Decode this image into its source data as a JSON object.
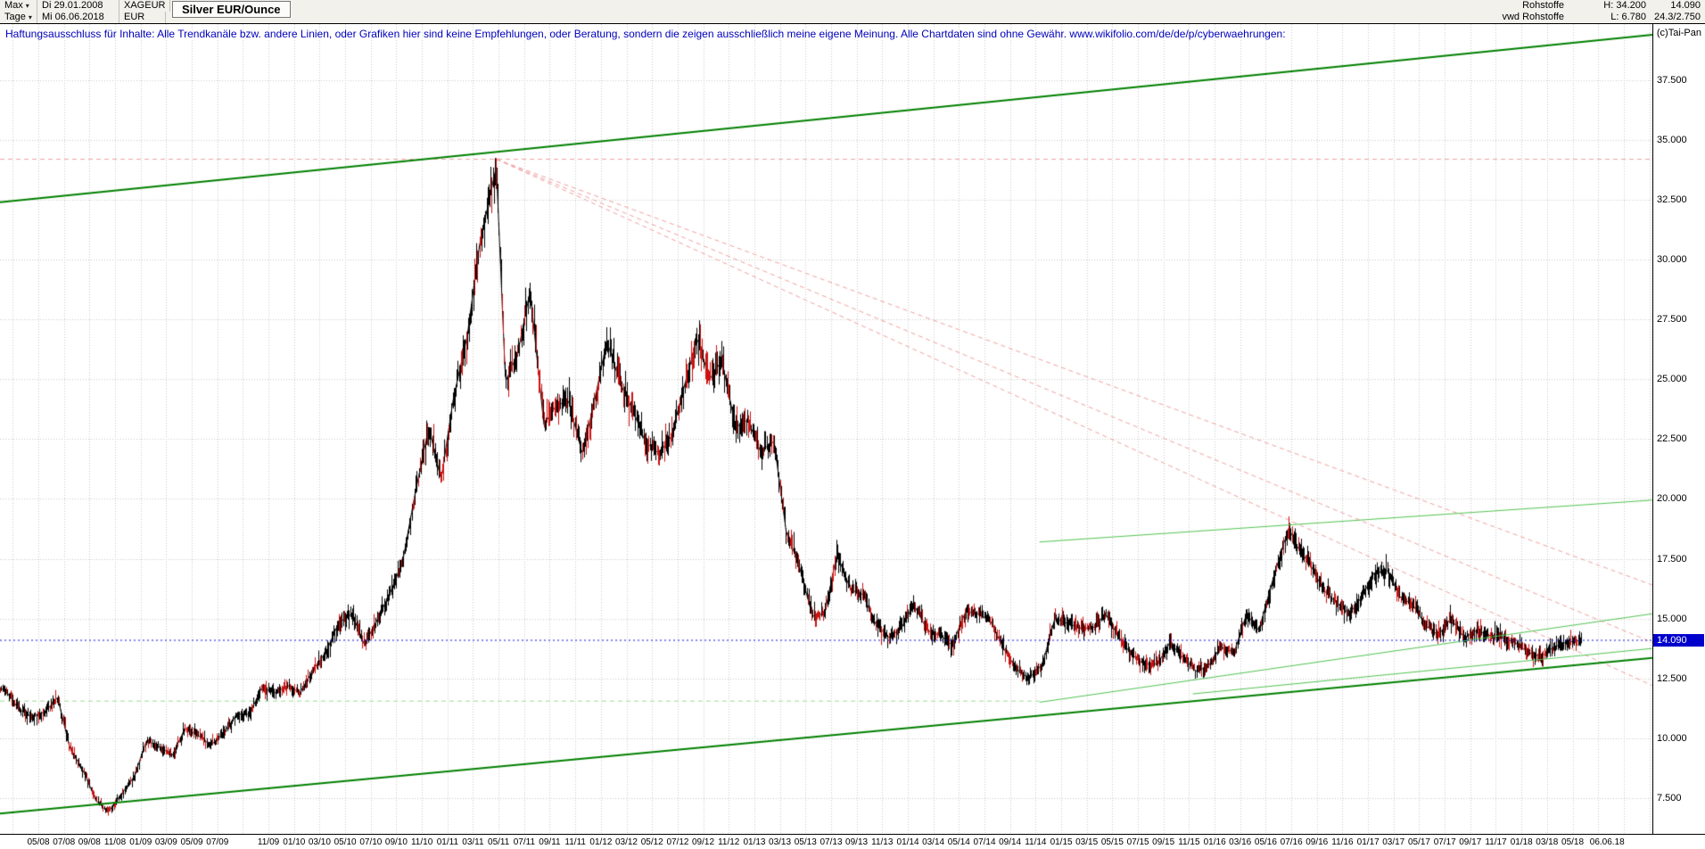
{
  "header": {
    "range_selector": "Max",
    "start_date": "Di 29.01.2008",
    "symbol": "XAGEUR",
    "title": "Silver EUR/Ounce",
    "period_selector": "Tage",
    "end_date": "Mi 06.06.2018",
    "currency": "EUR",
    "right": {
      "feed1": "Rohstoffe",
      "high": "H: 34.200",
      "last": "14.090",
      "feed2": "vwd Rohstoffe",
      "low": "L: 6.780",
      "extra": "24.3/2.750"
    }
  },
  "disclaimer": {
    "text": "Haftungsausschluss für Inhalte: Alle Trendkanäle bzw. andere Linien, oder Grafiken hier sind keine Empfehlungen, oder Beratung, sondern die zeigen ausschließlich meine eigene Meinung. Alle Chartdaten sind ohne Gewähr.  www.wikifolio.com/de/de/p/cyberwaehrungen:",
    "copyright": "(c)Tai-Pan"
  },
  "chart_data": {
    "type": "candlestick",
    "title": "Silver EUR/Ounce",
    "symbol": "XAGEUR",
    "currency": "EUR",
    "period": "Tage",
    "high": 34.2,
    "low": 6.78,
    "last": 14.09,
    "price_label": "14.090",
    "x_range": [
      2008.125,
      2018.895
    ],
    "y_range": [
      6.0,
      39.85
    ],
    "grid": {
      "v_start": 2008.208,
      "v_step": 0.16667
    },
    "colors": {
      "up": "#000000",
      "down": "#cc1111",
      "grid": "#c9c9c9"
    },
    "y_ticks": [
      {
        "label": "37.500",
        "value": 37.5
      },
      {
        "label": "35.000",
        "value": 35.0
      },
      {
        "label": "32.500",
        "value": 32.5
      },
      {
        "label": "30.000",
        "value": 30.0
      },
      {
        "label": "27.500",
        "value": 27.5
      },
      {
        "label": "25.000",
        "value": 25.0
      },
      {
        "label": "22.500",
        "value": 22.5
      },
      {
        "label": "20.000",
        "value": 20.0
      },
      {
        "label": "17.500",
        "value": 17.5
      },
      {
        "label": "15.000",
        "value": 15.0
      },
      {
        "label": "12.500",
        "value": 12.5
      },
      {
        "label": "10.000",
        "value": 10.0
      },
      {
        "label": "7.500",
        "value": 7.5
      }
    ],
    "x_ticks": [
      {
        "label": "05/08",
        "t": 2008.375
      },
      {
        "label": "07/08",
        "t": 2008.542
      },
      {
        "label": "09/08",
        "t": 2008.708
      },
      {
        "label": "11/08",
        "t": 2008.875
      },
      {
        "label": "01/09",
        "t": 2009.042
      },
      {
        "label": "03/09",
        "t": 2009.208
      },
      {
        "label": "05/09",
        "t": 2009.375
      },
      {
        "label": "07/09",
        "t": 2009.542
      },
      {
        "label": "11/09",
        "t": 2009.875
      },
      {
        "label": "01/10",
        "t": 2010.042
      },
      {
        "label": "03/10",
        "t": 2010.208
      },
      {
        "label": "05/10",
        "t": 2010.375
      },
      {
        "label": "07/10",
        "t": 2010.542
      },
      {
        "label": "09/10",
        "t": 2010.708
      },
      {
        "label": "11/10",
        "t": 2010.875
      },
      {
        "label": "01/11",
        "t": 2011.042
      },
      {
        "label": "03/11",
        "t": 2011.208
      },
      {
        "label": "05/11",
        "t": 2011.375
      },
      {
        "label": "07/11",
        "t": 2011.542
      },
      {
        "label": "09/11",
        "t": 2011.708
      },
      {
        "label": "11/11",
        "t": 2011.875
      },
      {
        "label": "01/12",
        "t": 2012.042
      },
      {
        "label": "03/12",
        "t": 2012.208
      },
      {
        "label": "05/12",
        "t": 2012.375
      },
      {
        "label": "07/12",
        "t": 2012.542
      },
      {
        "label": "09/12",
        "t": 2012.708
      },
      {
        "label": "11/12",
        "t": 2012.875
      },
      {
        "label": "01/13",
        "t": 2013.042
      },
      {
        "label": "03/13",
        "t": 2013.208
      },
      {
        "label": "05/13",
        "t": 2013.375
      },
      {
        "label": "07/13",
        "t": 2013.542
      },
      {
        "label": "09/13",
        "t": 2013.708
      },
      {
        "label": "11/13",
        "t": 2013.875
      },
      {
        "label": "01/14",
        "t": 2014.042
      },
      {
        "label": "03/14",
        "t": 2014.208
      },
      {
        "label": "05/14",
        "t": 2014.375
      },
      {
        "label": "07/14",
        "t": 2014.542
      },
      {
        "label": "09/14",
        "t": 2014.708
      },
      {
        "label": "11/14",
        "t": 2014.875
      },
      {
        "label": "01/15",
        "t": 2015.042
      },
      {
        "label": "03/15",
        "t": 2015.208
      },
      {
        "label": "05/15",
        "t": 2015.375
      },
      {
        "label": "07/15",
        "t": 2015.542
      },
      {
        "label": "09/15",
        "t": 2015.708
      },
      {
        "label": "11/15",
        "t": 2015.875
      },
      {
        "label": "01/16",
        "t": 2016.042
      },
      {
        "label": "03/16",
        "t": 2016.208
      },
      {
        "label": "05/16",
        "t": 2016.375
      },
      {
        "label": "07/16",
        "t": 2016.542
      },
      {
        "label": "09/16",
        "t": 2016.708
      },
      {
        "label": "11/16",
        "t": 2016.875
      },
      {
        "label": "01/17",
        "t": 2017.042
      },
      {
        "label": "03/17",
        "t": 2017.208
      },
      {
        "label": "05/17",
        "t": 2017.375
      },
      {
        "label": "07/17",
        "t": 2017.542
      },
      {
        "label": "09/17",
        "t": 2017.708
      },
      {
        "label": "11/17",
        "t": 2017.875
      },
      {
        "label": "01/18",
        "t": 2018.042
      },
      {
        "label": "03/18",
        "t": 2018.208
      },
      {
        "label": "05/18",
        "t": 2018.375
      },
      {
        "label": "06.06.18",
        "t": 2018.6
      }
    ],
    "series": [
      {
        "name": "Silver EUR/Ounce (approx. monthly closes)",
        "points": [
          [
            2008.0,
            11.3
          ],
          [
            2008.08,
            12.2
          ],
          [
            2008.16,
            12.0
          ],
          [
            2008.25,
            11.2
          ],
          [
            2008.33,
            10.9
          ],
          [
            2008.42,
            11.1
          ],
          [
            2008.5,
            11.7
          ],
          [
            2008.58,
            9.6
          ],
          [
            2008.67,
            8.6
          ],
          [
            2008.75,
            7.4
          ],
          [
            2008.83,
            6.9
          ],
          [
            2008.92,
            7.7
          ],
          [
            2009.0,
            8.4
          ],
          [
            2009.08,
            9.9
          ],
          [
            2009.17,
            9.6
          ],
          [
            2009.25,
            9.3
          ],
          [
            2009.33,
            10.4
          ],
          [
            2009.42,
            10.1
          ],
          [
            2009.5,
            9.7
          ],
          [
            2009.58,
            10.2
          ],
          [
            2009.67,
            11.0
          ],
          [
            2009.75,
            11.0
          ],
          [
            2009.83,
            12.1
          ],
          [
            2009.92,
            11.9
          ],
          [
            2010.0,
            12.2
          ],
          [
            2010.08,
            11.9
          ],
          [
            2010.17,
            12.9
          ],
          [
            2010.25,
            13.6
          ],
          [
            2010.33,
            14.8
          ],
          [
            2010.42,
            15.2
          ],
          [
            2010.5,
            13.9
          ],
          [
            2010.58,
            14.9
          ],
          [
            2010.67,
            16.1
          ],
          [
            2010.75,
            17.4
          ],
          [
            2010.83,
            20.2
          ],
          [
            2010.92,
            23.0
          ],
          [
            2011.0,
            20.8
          ],
          [
            2011.08,
            24.2
          ],
          [
            2011.17,
            26.8
          ],
          [
            2011.25,
            30.6
          ],
          [
            2011.36,
            33.9
          ],
          [
            2011.42,
            24.9
          ],
          [
            2011.5,
            26.1
          ],
          [
            2011.58,
            28.7
          ],
          [
            2011.67,
            23.1
          ],
          [
            2011.75,
            23.9
          ],
          [
            2011.83,
            24.1
          ],
          [
            2011.92,
            21.9
          ],
          [
            2012.0,
            24.1
          ],
          [
            2012.08,
            26.6
          ],
          [
            2012.17,
            24.8
          ],
          [
            2012.25,
            23.7
          ],
          [
            2012.33,
            22.4
          ],
          [
            2012.42,
            21.9
          ],
          [
            2012.5,
            22.6
          ],
          [
            2012.58,
            24.6
          ],
          [
            2012.67,
            26.7
          ],
          [
            2012.75,
            25.0
          ],
          [
            2012.83,
            25.8
          ],
          [
            2012.92,
            23.0
          ],
          [
            2013.0,
            23.3
          ],
          [
            2013.08,
            22.0
          ],
          [
            2013.17,
            22.4
          ],
          [
            2013.25,
            18.6
          ],
          [
            2013.33,
            17.3
          ],
          [
            2013.42,
            15.1
          ],
          [
            2013.5,
            15.2
          ],
          [
            2013.58,
            17.7
          ],
          [
            2013.67,
            16.2
          ],
          [
            2013.75,
            16.0
          ],
          [
            2013.83,
            14.8
          ],
          [
            2013.92,
            14.2
          ],
          [
            2014.0,
            14.6
          ],
          [
            2014.08,
            15.6
          ],
          [
            2014.17,
            14.5
          ],
          [
            2014.25,
            14.3
          ],
          [
            2014.33,
            13.9
          ],
          [
            2014.42,
            15.3
          ],
          [
            2014.5,
            15.2
          ],
          [
            2014.58,
            14.9
          ],
          [
            2014.67,
            13.7
          ],
          [
            2014.75,
            12.9
          ],
          [
            2014.83,
            12.5
          ],
          [
            2014.92,
            13.1
          ],
          [
            2015.0,
            15.0
          ],
          [
            2015.08,
            14.8
          ],
          [
            2015.17,
            14.6
          ],
          [
            2015.25,
            14.6
          ],
          [
            2015.33,
            15.2
          ],
          [
            2015.42,
            14.2
          ],
          [
            2015.5,
            13.5
          ],
          [
            2015.58,
            13.1
          ],
          [
            2015.67,
            13.1
          ],
          [
            2015.75,
            14.0
          ],
          [
            2015.83,
            13.4
          ],
          [
            2015.92,
            12.8
          ],
          [
            2016.0,
            13.0
          ],
          [
            2016.08,
            13.8
          ],
          [
            2016.17,
            13.6
          ],
          [
            2016.25,
            15.2
          ],
          [
            2016.33,
            14.5
          ],
          [
            2016.42,
            16.6
          ],
          [
            2016.5,
            18.3
          ],
          [
            2016.54,
            18.6
          ],
          [
            2016.58,
            18.0
          ],
          [
            2016.67,
            17.2
          ],
          [
            2016.75,
            16.2
          ],
          [
            2016.83,
            15.7
          ],
          [
            2016.92,
            15.2
          ],
          [
            2017.0,
            15.9
          ],
          [
            2017.08,
            16.9
          ],
          [
            2017.17,
            17.0
          ],
          [
            2017.25,
            15.9
          ],
          [
            2017.33,
            15.6
          ],
          [
            2017.42,
            14.7
          ],
          [
            2017.5,
            14.3
          ],
          [
            2017.58,
            15.0
          ],
          [
            2017.67,
            14.2
          ],
          [
            2017.75,
            14.5
          ],
          [
            2017.83,
            14.3
          ],
          [
            2017.92,
            14.2
          ],
          [
            2018.0,
            14.0
          ],
          [
            2018.08,
            13.6
          ],
          [
            2018.17,
            13.4
          ],
          [
            2018.25,
            13.8
          ],
          [
            2018.33,
            14.0
          ],
          [
            2018.43,
            14.09
          ]
        ]
      }
    ],
    "lines": [
      {
        "name": "high-horizontal",
        "x1": 2008.125,
        "y1": 34.2,
        "x2": 2018.895,
        "y2": 34.2,
        "color": "#f2a0a0",
        "width": 1,
        "dash": [
          5,
          4
        ],
        "layer": "back"
      },
      {
        "name": "support-horizontal",
        "x1": 2008.125,
        "y1": 11.55,
        "x2": 2014.9,
        "y2": 11.55,
        "color": "#9ade9a",
        "width": 1,
        "dash": [
          5,
          4
        ],
        "layer": "back"
      },
      {
        "name": "resistance-ray-1",
        "x1": 2011.36,
        "y1": 34.2,
        "x2": 2018.895,
        "y2": 16.4,
        "color": "#f2a0a0",
        "width": 1,
        "dash": [
          5,
          4
        ],
        "layer": "back"
      },
      {
        "name": "resistance-ray-2",
        "x1": 2011.36,
        "y1": 34.2,
        "x2": 2018.895,
        "y2": 14.0,
        "color": "#f2a0a0",
        "width": 1,
        "dash": [
          5,
          4
        ],
        "layer": "back"
      },
      {
        "name": "resistance-ray-3",
        "x1": 2011.36,
        "y1": 34.2,
        "x2": 2018.895,
        "y2": 12.2,
        "color": "#f2a0a0",
        "width": 1,
        "dash": [
          5,
          4
        ],
        "layer": "back"
      },
      {
        "name": "upper-channel",
        "x1": 2008.125,
        "y1": 32.4,
        "x2": 2018.895,
        "y2": 39.4,
        "color": "#008000",
        "width": 2,
        "dash": [],
        "layer": "front"
      },
      {
        "name": "lower-channel",
        "x1": 2008.125,
        "y1": 6.85,
        "x2": 2018.895,
        "y2": 13.35,
        "color": "#008000",
        "width": 2,
        "dash": [],
        "layer": "front"
      },
      {
        "name": "rising-support",
        "x1": 2014.9,
        "y1": 11.5,
        "x2": 2018.895,
        "y2": 15.2,
        "color": "#52c452",
        "width": 1,
        "dash": [],
        "layer": "front"
      },
      {
        "name": "rising-resistance",
        "x1": 2014.9,
        "y1": 18.2,
        "x2": 2018.895,
        "y2": 19.95,
        "color": "#52c452",
        "width": 1,
        "dash": [],
        "layer": "front"
      },
      {
        "name": "minor-support",
        "x1": 2015.9,
        "y1": 11.85,
        "x2": 2018.895,
        "y2": 13.75,
        "color": "#52c452",
        "width": 1,
        "dash": [],
        "layer": "front"
      },
      {
        "name": "current-price",
        "x1": 2008.125,
        "y1": 14.09,
        "x2": 2018.895,
        "y2": 14.09,
        "color": "#1414e6",
        "width": 1,
        "dash": [
          2,
          3
        ],
        "layer": "front"
      }
    ]
  }
}
